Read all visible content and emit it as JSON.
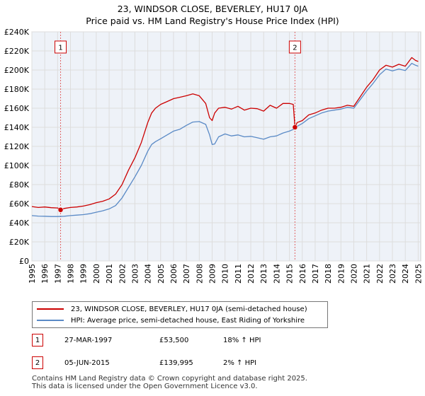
{
  "chart_data": {
    "type": "line",
    "title_lines": [
      "23, WINDSOR CLOSE, BEVERLEY, HU17 0JA",
      "Price paid vs. HM Land Registry's House Price Index (HPI)"
    ],
    "ylim": [
      0,
      240000
    ],
    "xlim": [
      1995,
      2025.2
    ],
    "y_ticks": [
      {
        "value": 0,
        "label": "£0"
      },
      {
        "value": 20000,
        "label": "£20K"
      },
      {
        "value": 40000,
        "label": "£40K"
      },
      {
        "value": 60000,
        "label": "£60K"
      },
      {
        "value": 80000,
        "label": "£80K"
      },
      {
        "value": 100000,
        "label": "£100K"
      },
      {
        "value": 120000,
        "label": "£120K"
      },
      {
        "value": 140000,
        "label": "£140K"
      },
      {
        "value": 160000,
        "label": "£160K"
      },
      {
        "value": 180000,
        "label": "£180K"
      },
      {
        "value": 200000,
        "label": "£200K"
      },
      {
        "value": 220000,
        "label": "£220K"
      },
      {
        "value": 240000,
        "label": "£240K"
      }
    ],
    "x_ticks": [
      "1995",
      "1996",
      "1997",
      "1998",
      "1999",
      "2000",
      "2001",
      "2002",
      "2003",
      "2004",
      "2005",
      "2006",
      "2007",
      "2008",
      "2009",
      "2010",
      "2011",
      "2012",
      "2013",
      "2014",
      "2015",
      "2016",
      "2017",
      "2018",
      "2019",
      "2020",
      "2021",
      "2022",
      "2023",
      "2024",
      "2025"
    ],
    "series": [
      {
        "name": "23, WINDSOR CLOSE, BEVERLEY, HU17 0JA (semi-detached house)",
        "color": "#cc0000",
        "x": [
          1995.0,
          1995.5,
          1996.0,
          1996.5,
          1997.0,
          1997.23,
          1997.5,
          1998.0,
          1998.5,
          1999.0,
          1999.5,
          2000.0,
          2000.5,
          2001.0,
          2001.5,
          2002.0,
          2002.5,
          2003.0,
          2003.5,
          2004.0,
          2004.3,
          2004.6,
          2005.0,
          2005.5,
          2006.0,
          2006.5,
          2007.0,
          2007.5,
          2008.0,
          2008.5,
          2008.8,
          2009.0,
          2009.2,
          2009.5,
          2010.0,
          2010.5,
          2011.0,
          2011.5,
          2012.0,
          2012.5,
          2013.0,
          2013.5,
          2014.0,
          2014.5,
          2015.0,
          2015.3,
          2015.43,
          2015.6,
          2016.0,
          2016.5,
          2017.0,
          2017.5,
          2018.0,
          2018.5,
          2019.0,
          2019.5,
          2020.0,
          2020.5,
          2021.0,
          2021.5,
          2022.0,
          2022.5,
          2023.0,
          2023.5,
          2024.0,
          2024.5,
          2024.8,
          2025.0
        ],
        "values": [
          57000,
          56000,
          56500,
          55800,
          55500,
          53500,
          55000,
          56000,
          56500,
          57500,
          59000,
          61000,
          62500,
          65000,
          70000,
          80000,
          95000,
          108000,
          124000,
          145000,
          155000,
          160000,
          164000,
          167000,
          170000,
          171500,
          173000,
          175000,
          173000,
          165000,
          150000,
          147000,
          155000,
          160000,
          161000,
          159000,
          162000,
          158000,
          160000,
          159500,
          157000,
          163000,
          160000,
          165000,
          165000,
          164000,
          139995,
          145000,
          147000,
          153000,
          155000,
          158000,
          160000,
          160000,
          161000,
          163000,
          162000,
          172000,
          182000,
          190000,
          200000,
          205000,
          203000,
          206000,
          204000,
          213000,
          210000,
          209000
        ]
      },
      {
        "name": "HPI: Average price, semi-detached house, East Riding of Yorkshire",
        "color": "#5a8ac6",
        "x": [
          1995.0,
          1995.5,
          1996.0,
          1996.5,
          1997.0,
          1997.5,
          1998.0,
          1998.5,
          1999.0,
          1999.5,
          2000.0,
          2000.5,
          2001.0,
          2001.5,
          2002.0,
          2002.5,
          2003.0,
          2003.5,
          2004.0,
          2004.3,
          2004.6,
          2005.0,
          2005.5,
          2006.0,
          2006.5,
          2007.0,
          2007.5,
          2008.0,
          2008.5,
          2008.8,
          2009.0,
          2009.2,
          2009.5,
          2010.0,
          2010.5,
          2011.0,
          2011.5,
          2012.0,
          2012.5,
          2013.0,
          2013.5,
          2014.0,
          2014.5,
          2015.0,
          2015.43,
          2015.6,
          2016.0,
          2016.5,
          2017.0,
          2017.5,
          2018.0,
          2018.5,
          2019.0,
          2019.5,
          2020.0,
          2020.5,
          2021.0,
          2021.5,
          2022.0,
          2022.5,
          2023.0,
          2023.5,
          2024.0,
          2024.5,
          2024.8,
          2025.0
        ],
        "values": [
          47500,
          47000,
          46800,
          46500,
          46500,
          46800,
          47500,
          48000,
          48500,
          49500,
          51000,
          52500,
          54500,
          58000,
          66000,
          77000,
          88000,
          100000,
          115000,
          122000,
          125000,
          128000,
          132000,
          136000,
          138000,
          142000,
          145500,
          146000,
          143000,
          132000,
          122000,
          122500,
          130000,
          133000,
          131000,
          132000,
          130000,
          130500,
          129000,
          127500,
          130000,
          131000,
          134000,
          136000,
          138500,
          141000,
          144000,
          149000,
          152000,
          155000,
          157000,
          158000,
          159000,
          161000,
          160000,
          169000,
          178000,
          186000,
          195000,
          201000,
          199000,
          201000,
          199500,
          207000,
          205000,
          204000
        ]
      }
    ],
    "sales": [
      {
        "id": "1",
        "x": 1997.23,
        "value": 53500,
        "date": "27-MAR-1997",
        "price": "£53,500",
        "hpi": "18% ↑ HPI"
      },
      {
        "id": "2",
        "x": 2015.43,
        "value": 139995,
        "date": "05-JUN-2015",
        "price": "£139,995",
        "hpi": "2% ↑ HPI"
      }
    ]
  },
  "legend": {
    "property_label": "23, WINDSOR CLOSE, BEVERLEY, HU17 0JA (semi-detached house)",
    "hpi_label": "HPI: Average price, semi-detached house, East Riding of Yorkshire"
  },
  "footer": {
    "line1": "Contains HM Land Registry data © Crown copyright and database right 2025.",
    "line2": "This data is licensed under the Open Government Licence v3.0."
  },
  "colors": {
    "property": "#cc0000",
    "hpi": "#5a8ac6",
    "grid": "#dddddd",
    "plot_bg": "#eef2f8"
  }
}
